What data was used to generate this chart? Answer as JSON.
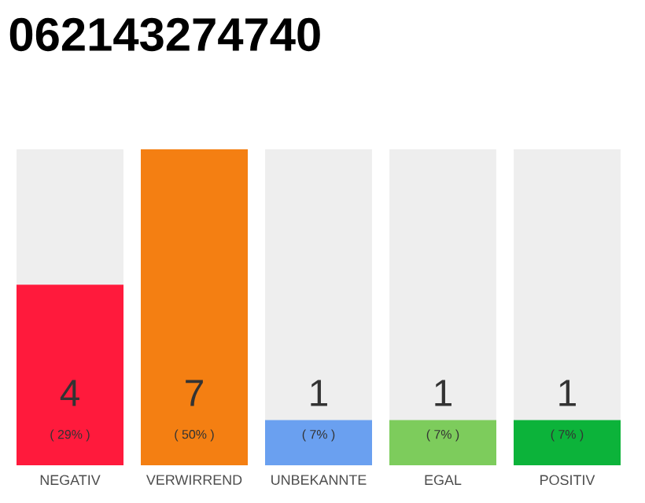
{
  "chart_data": {
    "type": "bar",
    "title": "062143274740",
    "categories": [
      "NEGATIV",
      "VERWIRREND",
      "UNBEKANNTE",
      "EGAL",
      "POSITIV"
    ],
    "values": [
      4,
      7,
      1,
      1,
      1
    ],
    "colors": [
      "#ff1a3c",
      "#f47f12",
      "#6aa0f0",
      "#7dcc5c",
      "#0cb33a"
    ],
    "value_labels": [
      "4",
      "7",
      "1",
      "1",
      "1"
    ],
    "annotations": [
      "( 29% )",
      "( 50% )",
      "( 7% )",
      "( 7% )",
      "( 7% )"
    ]
  }
}
